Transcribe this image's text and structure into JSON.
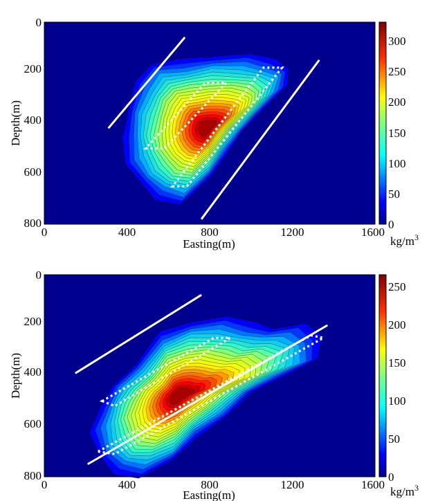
{
  "chart_data": [
    {
      "type": "heatmap",
      "xlabel": "Easting(m)",
      "ylabel": "Depth(m)",
      "xlim": [
        0,
        1600
      ],
      "ylim": [
        800,
        0
      ],
      "x_ticks": [
        "0",
        "400",
        "800",
        "1200",
        "1600"
      ],
      "y_ticks": [
        "0",
        "200",
        "400",
        "600",
        "800"
      ],
      "colorbar": {
        "range": [
          0,
          330
        ],
        "ticks": [
          "0",
          "50",
          "100",
          "150",
          "200",
          "250",
          "300"
        ],
        "unit": "kg/m",
        "unit_sup": "3"
      },
      "anomaly": {
        "peak_value": 330,
        "core": {
          "x": 790,
          "y": 420
        },
        "contour_levels": 22,
        "outline": [
          [
            520,
            168
          ],
          [
            660,
            150
          ],
          [
            820,
            130
          ],
          [
            990,
            130
          ],
          [
            1120,
            148
          ],
          [
            1190,
            180
          ],
          [
            1170,
            250
          ],
          [
            1080,
            330
          ],
          [
            960,
            430
          ],
          [
            880,
            520
          ],
          [
            800,
            620
          ],
          [
            660,
            720
          ],
          [
            540,
            700
          ],
          [
            460,
            640
          ],
          [
            400,
            560
          ],
          [
            380,
            460
          ],
          [
            400,
            350
          ],
          [
            450,
            240
          ]
        ],
        "colormap": [
          "#00008f",
          "#0000ff",
          "#00bfff",
          "#40ffbf",
          "#bfff40",
          "#ffff00",
          "#ff8000",
          "#ff0000",
          "#800000"
        ]
      },
      "white_lines": [
        {
          "x": [
            310,
            680
          ],
          "y": [
            420,
            60
          ]
        },
        {
          "x": [
            760,
            1330
          ],
          "y": [
            780,
            150
          ]
        }
      ],
      "dotted_boxes": [
        [
          [
            490,
            500
          ],
          [
            580,
            500
          ],
          [
            880,
            240
          ],
          [
            780,
            240
          ]
        ],
        [
          [
            620,
            650
          ],
          [
            690,
            650
          ],
          [
            1150,
            180
          ],
          [
            1060,
            180
          ]
        ]
      ]
    },
    {
      "type": "heatmap",
      "xlabel": "Easting(m)",
      "ylabel": "Depth(m)",
      "xlim": [
        0,
        1600
      ],
      "ylim": [
        800,
        0
      ],
      "x_ticks": [
        "0",
        "400",
        "800",
        "1200",
        "1600"
      ],
      "y_ticks": [
        "0",
        "200",
        "400",
        "600",
        "800"
      ],
      "colorbar": {
        "range": [
          0,
          265
        ],
        "ticks": [
          "0",
          "50",
          "100",
          "150",
          "200",
          "250"
        ],
        "unit": "kg/m",
        "unit_sup": "3"
      },
      "anomaly": {
        "peak_value": 265,
        "core": {
          "x": 650,
          "y": 480
        },
        "contour_levels": 22,
        "outline": [
          [
            440,
            360
          ],
          [
            560,
            230
          ],
          [
            720,
            180
          ],
          [
            880,
            170
          ],
          [
            1020,
            190
          ],
          [
            1120,
            210
          ],
          [
            1250,
            200
          ],
          [
            1350,
            240
          ],
          [
            1330,
            330
          ],
          [
            1180,
            390
          ],
          [
            1020,
            460
          ],
          [
            880,
            560
          ],
          [
            740,
            640
          ],
          [
            620,
            740
          ],
          [
            460,
            800
          ],
          [
            340,
            790
          ],
          [
            260,
            720
          ],
          [
            230,
            620
          ],
          [
            270,
            520
          ],
          [
            330,
            440
          ]
        ],
        "colormap": [
          "#00008f",
          "#0000ff",
          "#00bfff",
          "#40ffbf",
          "#bfff40",
          "#ffff00",
          "#ff8000",
          "#ff0000",
          "#800000"
        ]
      },
      "white_lines": [
        {
          "x": [
            150,
            760
          ],
          "y": [
            390,
            80
          ]
        },
        {
          "x": [
            210,
            1370
          ],
          "y": [
            750,
            200
          ]
        }
      ],
      "dotted_boxes": [
        [
          [
            280,
            500
          ],
          [
            340,
            520
          ],
          [
            900,
            250
          ],
          [
            820,
            250
          ]
        ],
        [
          [
            260,
            700
          ],
          [
            340,
            710
          ],
          [
            1350,
            250
          ],
          [
            1290,
            240
          ]
        ]
      ]
    }
  ]
}
